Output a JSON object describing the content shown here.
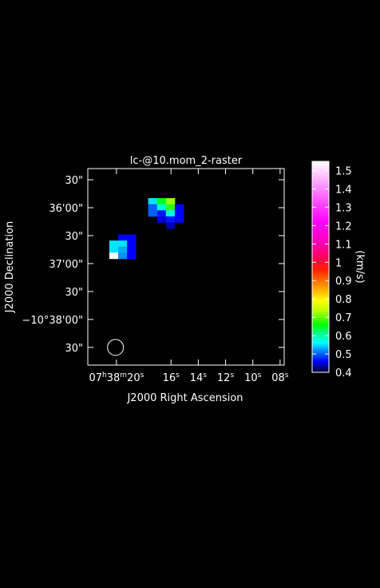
{
  "chart_data": {
    "type": "heatmap",
    "title": "lc-@10.mom_2-raster",
    "xlabel": "J2000 Right Ascension",
    "ylabel": "J2000 Declination",
    "colorbar_label": "(km/s)",
    "x_ticks": [
      {
        "ra_s": 20,
        "label": "07h38m20s"
      },
      {
        "ra_s": 16,
        "label": "16s"
      },
      {
        "ra_s": 14,
        "label": "14s"
      },
      {
        "ra_s": 12,
        "label": "12s"
      },
      {
        "ra_s": 10,
        "label": "10s"
      },
      {
        "ra_s": 8,
        "label": "08s"
      }
    ],
    "y_ticks": [
      {
        "dec_arcsec": 2160,
        "label": "30\""
      },
      {
        "dec_arcsec": 2190,
        "label": "−10°38'00\""
      },
      {
        "dec_arcsec": 2220,
        "label": "30\""
      },
      {
        "dec_arcsec": 2250,
        "label": "37'00\""
      },
      {
        "dec_arcsec": 2280,
        "label": "30\""
      },
      {
        "dec_arcsec": 2310,
        "label": "36'00\""
      },
      {
        "dec_arcsec": 2340,
        "label": "30\""
      }
    ],
    "x_range_ra_s": [
      22.1,
      7.7
    ],
    "y_range_dec_arcsec": [
      2141,
      2352
    ],
    "beam": {
      "ra_s": 20.07,
      "dec_arcsec": 2160
    },
    "colorbar": {
      "min": 0.4,
      "max": 1.55,
      "ticks": [
        0.4,
        0.5,
        0.6,
        0.7,
        0.8,
        0.9,
        1,
        1.1,
        1.2,
        1.3,
        1.4,
        1.5
      ],
      "stops": [
        {
          "v": 0.4,
          "color": "#000030"
        },
        {
          "v": 0.43,
          "color": "#000090"
        },
        {
          "v": 0.46,
          "color": "#0000ff"
        },
        {
          "v": 0.52,
          "color": "#0090ff"
        },
        {
          "v": 0.56,
          "color": "#00ffff"
        },
        {
          "v": 0.61,
          "color": "#00ff90"
        },
        {
          "v": 0.66,
          "color": "#00ff00"
        },
        {
          "v": 0.73,
          "color": "#b0ff00"
        },
        {
          "v": 0.79,
          "color": "#ffff00"
        },
        {
          "v": 0.86,
          "color": "#ffa000"
        },
        {
          "v": 0.96,
          "color": "#ff2000"
        },
        {
          "v": 1.03,
          "color": "#ff0060"
        },
        {
          "v": 1.12,
          "color": "#ff00c0"
        },
        {
          "v": 1.22,
          "color": "#ff00ff"
        },
        {
          "v": 1.33,
          "color": "#ff50ff"
        },
        {
          "v": 1.43,
          "color": "#ffa0ff"
        },
        {
          "v": 1.55,
          "color": "#ffffff"
        }
      ]
    },
    "pixels": [
      {
        "ra_s": 17.35,
        "dec_arcsec": 2317.0,
        "v": 0.55
      },
      {
        "ra_s": 16.7,
        "dec_arcsec": 2317.0,
        "v": 0.65
      },
      {
        "ra_s": 16.05,
        "dec_arcsec": 2317.0,
        "v": 0.72
      },
      {
        "ra_s": 17.35,
        "dec_arcsec": 2310.5,
        "v": 0.5
      },
      {
        "ra_s": 16.7,
        "dec_arcsec": 2310.5,
        "v": 0.58
      },
      {
        "ra_s": 16.05,
        "dec_arcsec": 2310.5,
        "v": 0.68
      },
      {
        "ra_s": 15.4,
        "dec_arcsec": 2310.5,
        "v": 0.46
      },
      {
        "ra_s": 16.7,
        "dec_arcsec": 2304.0,
        "v": 0.47
      },
      {
        "ra_s": 16.05,
        "dec_arcsec": 2304.0,
        "v": 0.57
      },
      {
        "ra_s": 15.4,
        "dec_arcsec": 2304.0,
        "v": 0.46
      },
      {
        "ra_s": 17.35,
        "dec_arcsec": 2304.0,
        "v": 0.5
      },
      {
        "ra_s": 16.7,
        "dec_arcsec": 2297.5,
        "v": 0.45
      },
      {
        "ra_s": 16.05,
        "dec_arcsec": 2297.5,
        "v": 0.47
      },
      {
        "ra_s": 15.4,
        "dec_arcsec": 2297.5,
        "v": 0.46
      },
      {
        "ra_s": 16.05,
        "dec_arcsec": 2291.0,
        "v": 0.44
      },
      {
        "ra_s": 19.55,
        "dec_arcsec": 2278.0,
        "v": 0.46
      },
      {
        "ra_s": 18.9,
        "dec_arcsec": 2278.0,
        "v": 0.46
      },
      {
        "ra_s": 20.2,
        "dec_arcsec": 2271.5,
        "v": 0.55
      },
      {
        "ra_s": 19.55,
        "dec_arcsec": 2271.5,
        "v": 0.55
      },
      {
        "ra_s": 18.9,
        "dec_arcsec": 2271.5,
        "v": 0.46
      },
      {
        "ra_s": 20.2,
        "dec_arcsec": 2265.0,
        "v": 0.55
      },
      {
        "ra_s": 19.55,
        "dec_arcsec": 2265.0,
        "v": 0.53
      },
      {
        "ra_s": 18.9,
        "dec_arcsec": 2265.0,
        "v": 0.46
      },
      {
        "ra_s": 20.2,
        "dec_arcsec": 2258.5,
        "v": 1.55
      },
      {
        "ra_s": 19.55,
        "dec_arcsec": 2258.5,
        "v": 0.52
      },
      {
        "ra_s": 18.9,
        "dec_arcsec": 2258.5,
        "v": 0.46
      }
    ]
  }
}
